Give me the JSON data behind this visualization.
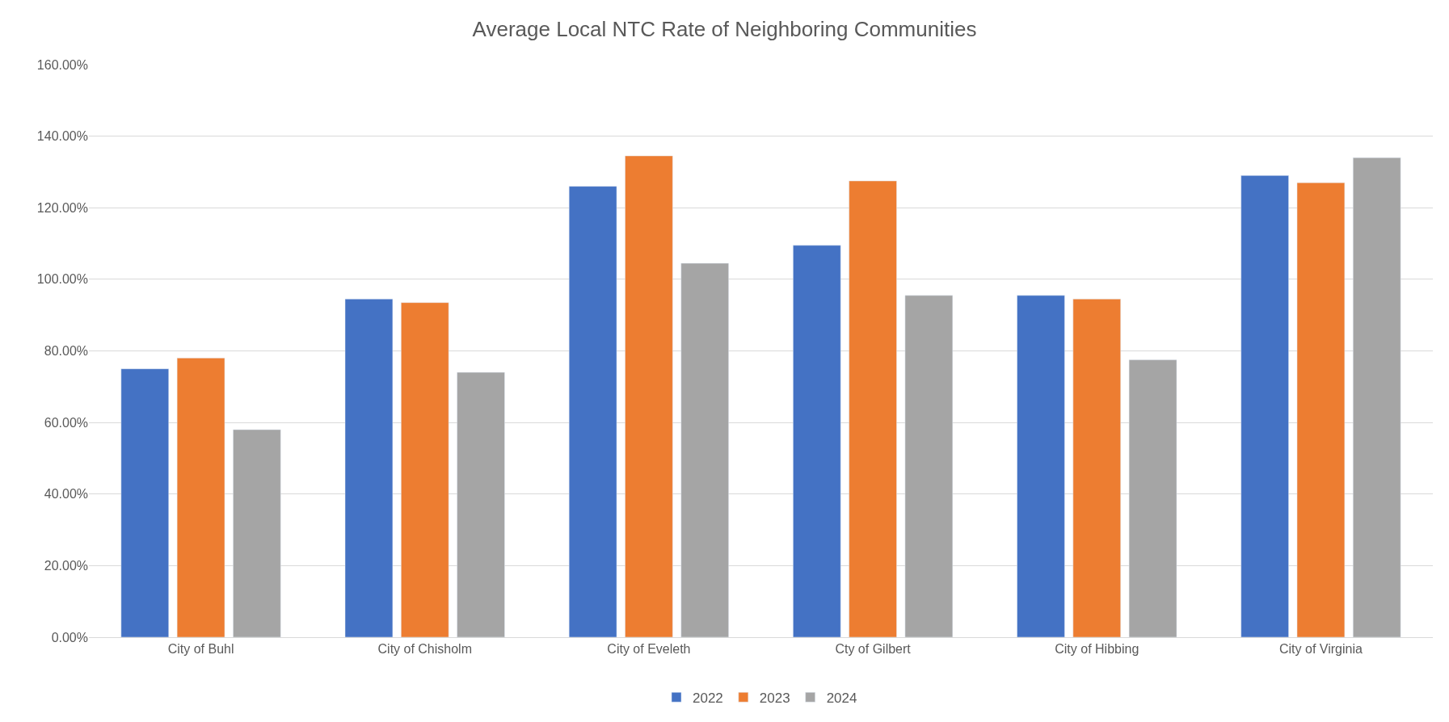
{
  "chart_data": {
    "type": "bar",
    "title": "Average Local NTC Rate of Neighboring Communities",
    "categories": [
      "City of Buhl",
      "City of Chisholm",
      "City of Eveleth",
      "Cty of Gilbert",
      "City of Hibbing",
      "City of Virginia"
    ],
    "series": [
      {
        "name": "2022",
        "color": "#4472c4",
        "values": [
          75,
          94.5,
          126,
          109.5,
          95.5,
          129
        ]
      },
      {
        "name": "2023",
        "color": "#ed7d31",
        "values": [
          78,
          93.5,
          134.5,
          127.5,
          94.5,
          127
        ]
      },
      {
        "name": "2024",
        "color": "#a5a5a5",
        "values": [
          58,
          74,
          104.5,
          95.5,
          77.5,
          134
        ]
      }
    ],
    "ylim": [
      0,
      160
    ],
    "yticks": [
      {
        "value": 0,
        "label": "0.00%"
      },
      {
        "value": 20,
        "label": "20.00%"
      },
      {
        "value": 40,
        "label": "40.00%"
      },
      {
        "value": 60,
        "label": "60.00%"
      },
      {
        "value": 80,
        "label": "80.00%"
      },
      {
        "value": 100,
        "label": "100.00%"
      },
      {
        "value": 120,
        "label": "120.00%"
      },
      {
        "value": 140,
        "label": "140.00%"
      },
      {
        "value": 160,
        "label": "160.00%"
      }
    ],
    "grid": "y",
    "legend": "bottom"
  }
}
